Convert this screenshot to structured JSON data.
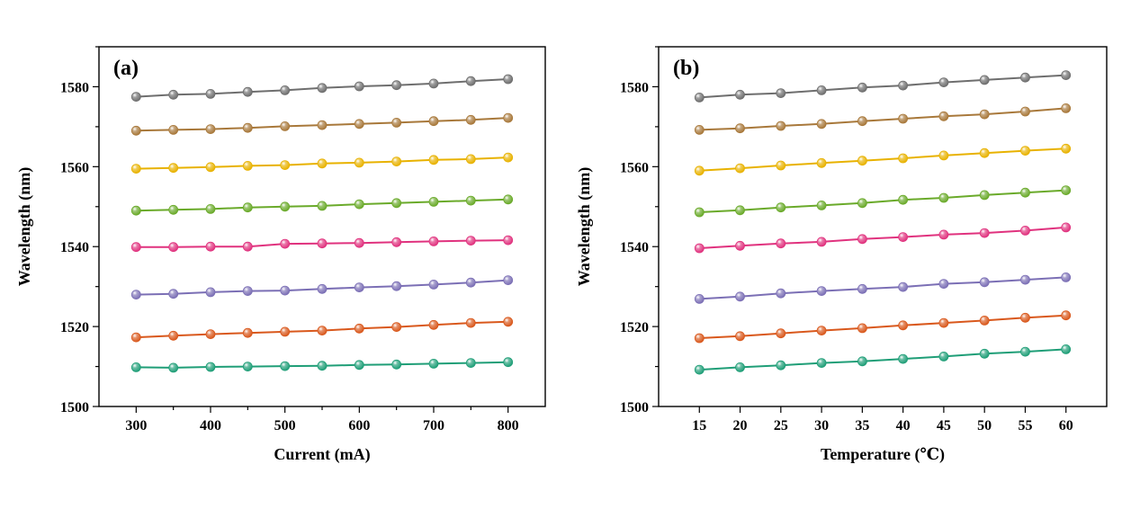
{
  "chart_data": [
    {
      "type": "line",
      "panel_label": "(a)",
      "xlabel": "Current (mA)",
      "ylabel": "Wavelength (nm)",
      "x": [
        300,
        350,
        400,
        450,
        500,
        550,
        600,
        650,
        700,
        750,
        800
      ],
      "xlim": [
        250,
        850
      ],
      "xticks": [
        300,
        400,
        500,
        600,
        700,
        800
      ],
      "ylim": [
        1500,
        1590
      ],
      "yticks": [
        1500,
        1520,
        1540,
        1560,
        1580
      ],
      "grid": false,
      "series": [
        {
          "color": "#6e6e6e",
          "values": [
            1577.5,
            1578.0,
            1578.2,
            1578.7,
            1579.1,
            1579.7,
            1580.1,
            1580.4,
            1580.8,
            1581.4,
            1581.9
          ]
        },
        {
          "color": "#a8783a",
          "values": [
            1569.0,
            1569.2,
            1569.4,
            1569.7,
            1570.1,
            1570.4,
            1570.7,
            1571.0,
            1571.4,
            1571.7,
            1572.2
          ]
        },
        {
          "color": "#e8b200",
          "values": [
            1559.5,
            1559.7,
            1559.9,
            1560.2,
            1560.4,
            1560.8,
            1561.0,
            1561.3,
            1561.7,
            1561.9,
            1562.3
          ]
        },
        {
          "color": "#6aaa2a",
          "values": [
            1549.0,
            1549.2,
            1549.4,
            1549.8,
            1550.0,
            1550.2,
            1550.6,
            1550.9,
            1551.2,
            1551.5,
            1551.8
          ]
        },
        {
          "color": "#e0327e",
          "values": [
            1539.9,
            1539.9,
            1540.0,
            1540.0,
            1540.7,
            1540.8,
            1540.9,
            1541.1,
            1541.3,
            1541.5,
            1541.6
          ]
        },
        {
          "color": "#7b6fb5",
          "values": [
            1528.0,
            1528.2,
            1528.6,
            1528.9,
            1529.0,
            1529.4,
            1529.8,
            1530.1,
            1530.5,
            1531.0,
            1531.6
          ]
        },
        {
          "color": "#d9581c",
          "values": [
            1517.3,
            1517.7,
            1518.1,
            1518.4,
            1518.7,
            1519.0,
            1519.5,
            1519.9,
            1520.4,
            1520.9,
            1521.2
          ]
        },
        {
          "color": "#1f9e77",
          "values": [
            1509.8,
            1509.7,
            1509.9,
            1510.0,
            1510.1,
            1510.2,
            1510.4,
            1510.5,
            1510.7,
            1510.9,
            1511.1
          ]
        }
      ]
    },
    {
      "type": "line",
      "panel_label": "(b)",
      "xlabel": "Temperature (℃)",
      "ylabel": "Wavelength (nm)",
      "x": [
        15,
        20,
        25,
        30,
        35,
        40,
        45,
        50,
        55,
        60
      ],
      "xlim": [
        10,
        65
      ],
      "xticks": [
        15,
        20,
        25,
        30,
        35,
        40,
        45,
        50,
        55,
        60
      ],
      "ylim": [
        1500,
        1590
      ],
      "yticks": [
        1500,
        1520,
        1540,
        1560,
        1580
      ],
      "grid": false,
      "series": [
        {
          "color": "#6e6e6e",
          "values": [
            1577.3,
            1578.0,
            1578.4,
            1579.1,
            1579.8,
            1580.3,
            1581.1,
            1581.7,
            1582.3,
            1582.9
          ]
        },
        {
          "color": "#a8783a",
          "values": [
            1569.2,
            1569.6,
            1570.2,
            1570.7,
            1571.4,
            1572.0,
            1572.6,
            1573.1,
            1573.8,
            1574.6
          ]
        },
        {
          "color": "#e8b200",
          "values": [
            1559.0,
            1559.6,
            1560.3,
            1560.9,
            1561.5,
            1562.1,
            1562.8,
            1563.4,
            1564.0,
            1564.5
          ]
        },
        {
          "color": "#6aaa2a",
          "values": [
            1548.6,
            1549.1,
            1549.8,
            1550.3,
            1550.9,
            1551.7,
            1552.2,
            1552.9,
            1553.5,
            1554.1
          ]
        },
        {
          "color": "#e0327e",
          "values": [
            1539.6,
            1540.2,
            1540.8,
            1541.2,
            1541.9,
            1542.4,
            1543.0,
            1543.4,
            1544.0,
            1544.8
          ]
        },
        {
          "color": "#7b6fb5",
          "values": [
            1526.9,
            1527.5,
            1528.3,
            1528.9,
            1529.4,
            1529.9,
            1530.7,
            1531.1,
            1531.7,
            1532.3
          ]
        },
        {
          "color": "#d9581c",
          "values": [
            1517.1,
            1517.6,
            1518.3,
            1519.0,
            1519.6,
            1520.3,
            1520.9,
            1521.5,
            1522.2,
            1522.8
          ]
        },
        {
          "color": "#1f9e77",
          "values": [
            1509.2,
            1509.8,
            1510.3,
            1510.9,
            1511.3,
            1511.9,
            1512.5,
            1513.2,
            1513.7,
            1514.3
          ]
        }
      ]
    }
  ]
}
